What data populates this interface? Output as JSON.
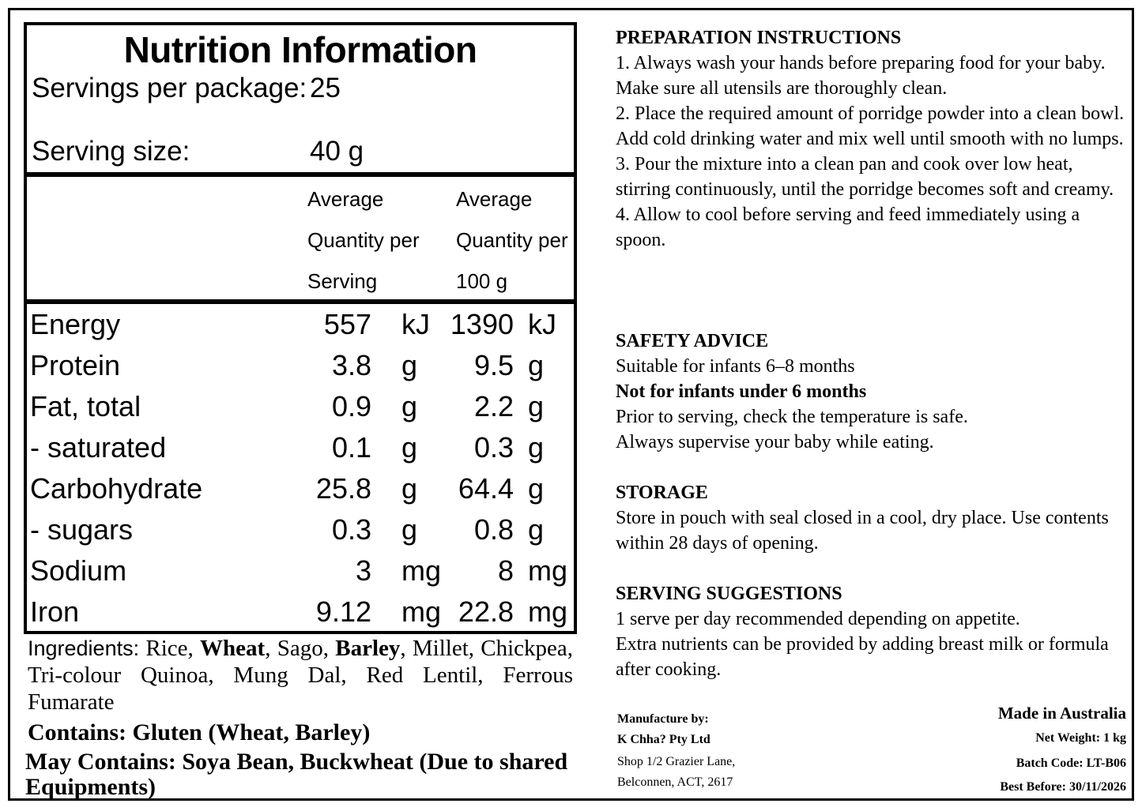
{
  "nutrition": {
    "title": "Nutrition Information",
    "servings_label": "Servings per package:",
    "servings_value": "25",
    "serving_size_label": "Serving size:",
    "serving_size_value": "40 g",
    "col1": [
      "Average",
      "Quantity per",
      "Serving"
    ],
    "col2": [
      "Average",
      "Quantity per",
      "100 g"
    ],
    "rows": [
      {
        "name": "Energy",
        "v1": "557",
        "u1": "kJ",
        "v2": "1390",
        "u2": "kJ"
      },
      {
        "name": "Protein",
        "v1": "3.8",
        "u1": "g",
        "v2": "9.5",
        "u2": "g"
      },
      {
        "name": "Fat, total",
        "v1": "0.9",
        "u1": "g",
        "v2": "2.2",
        "u2": "g"
      },
      {
        "name": "- saturated",
        "v1": "0.1",
        "u1": "g",
        "v2": "0.3",
        "u2": "g"
      },
      {
        "name": "Carbohydrate",
        "v1": "25.8",
        "u1": "g",
        "v2": "64.4",
        "u2": "g"
      },
      {
        "name": "- sugars",
        "v1": "0.3",
        "u1": "g",
        "v2": "0.8",
        "u2": "g"
      },
      {
        "name": "Sodium",
        "v1": "3",
        "u1": "mg",
        "v2": "8",
        "u2": "mg"
      },
      {
        "name": "Iron",
        "v1": "9.12",
        "u1": "mg",
        "v2": "22.8",
        "u2": "mg"
      }
    ]
  },
  "ingredients": {
    "label": "Ingredients:",
    "p1": "Rice,",
    "b1": "Wheat",
    "p2": ", Sago,",
    "b2": "Barley",
    "p3": ", Millet, Chickpea, Tri-colour Quinoa, Mung Dal, Red Lentil, Ferrous Fumarate"
  },
  "contains": "Contains: Gluten (Wheat, Barley)",
  "may_contain": "May Contains: Soya Bean, Buckwheat (Due to shared Equipments)",
  "preparation": {
    "heading": "PREPARATION INSTRUCTIONS",
    "steps": [
      "1. Always wash your hands before preparing food for your baby. Make sure all utensils are thoroughly clean.",
      "2. Place the required amount of porridge powder into a clean bowl. Add cold drinking water and mix well until smooth with no lumps.",
      "3. Pour the mixture into a clean pan and cook over low heat, stirring continuously, until the porridge becomes soft and creamy.",
      "4. Allow to cool before serving and feed immediately using a spoon."
    ]
  },
  "safety": {
    "heading": "SAFETY ADVICE",
    "line1": "Suitable for infants 6–8 months",
    "line2": "Not for infants under 6 months",
    "line3": "Prior to serving, check the temperature is safe.",
    "line4": "Always supervise your baby while eating."
  },
  "storage": {
    "heading": "STORAGE",
    "text": "Store in pouch with seal closed in a cool, dry place. Use contents within 28 days of opening."
  },
  "serving": {
    "heading": "SERVING SUGGESTIONS",
    "line1": "1 serve per day recommended depending on appetite.",
    "line2": "Extra nutrients can be provided by adding breast milk or formula after cooking."
  },
  "manufacturer": {
    "label": "Manufacture by:",
    "name": "K Chha? Pty Ltd",
    "address1": "Shop 1/2 Grazier Lane,",
    "address2": "Belconnen, ACT, 2617"
  },
  "product": {
    "origin": "Made in Australia",
    "net_weight": "Net Weight: 1 kg",
    "batch": "Batch Code: LT-B06",
    "best_before": "Best Before: 30/11/2026"
  }
}
